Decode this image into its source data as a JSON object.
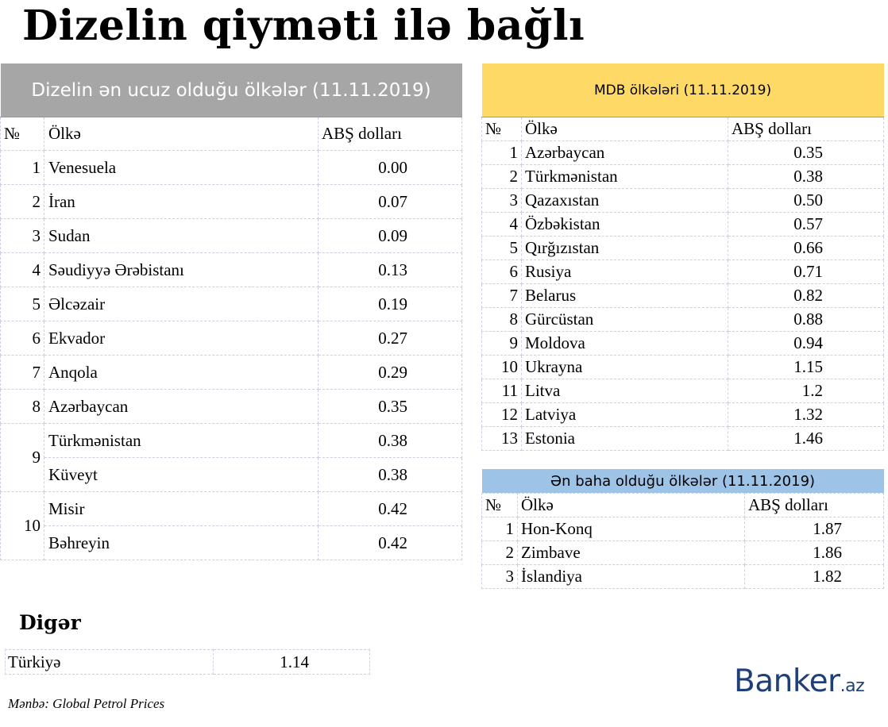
{
  "title": "Dizelin qiymәti ilә bağlı",
  "cheapest": {
    "heading": "Dizelin әn ucuz olduğu ölkәlәr (11.11.2019)",
    "columns": {
      "no": "№",
      "country": "Ölkә",
      "price": "ABŞ dolları"
    },
    "rows": [
      {
        "no": "1",
        "country": "Venesuela",
        "price": "0.00"
      },
      {
        "no": "2",
        "country": "İran",
        "price": "0.07"
      },
      {
        "no": "3",
        "country": "Sudan",
        "price": "0.09"
      },
      {
        "no": "4",
        "country": "Sәudiyyә Әrәbistanı",
        "price": "0.13"
      },
      {
        "no": "5",
        "country": "Әlcәzair",
        "price": "0.19"
      },
      {
        "no": "6",
        "country": "Ekvador",
        "price": "0.27"
      },
      {
        "no": "7",
        "country": "Anqola",
        "price": "0.29"
      },
      {
        "no": "8",
        "country": "Azәrbaycan",
        "price": "0.35"
      },
      {
        "no": "9",
        "country": "Türkmәnistan",
        "price": "0.38"
      },
      {
        "no": "",
        "country": "Küveyt",
        "price": "0.38"
      },
      {
        "no": "10",
        "country": "Misir",
        "price": "0.42"
      },
      {
        "no": "",
        "country": "Bәhreyin",
        "price": "0.42"
      }
    ]
  },
  "cis": {
    "heading": "MDB ölkәlәri (11.11.2019)",
    "columns": {
      "no": "№",
      "country": "Ölkә",
      "price": "ABŞ dolları"
    },
    "rows": [
      {
        "no": "1",
        "country": "Azәrbaycan",
        "price": "0.35"
      },
      {
        "no": "2",
        "country": "Türkmәnistan",
        "price": "0.38"
      },
      {
        "no": "3",
        "country": "Qazaxıstan",
        "price": "0.50"
      },
      {
        "no": "4",
        "country": "Özbәkistan",
        "price": "0.57"
      },
      {
        "no": "5",
        "country": "Qırğızıstan",
        "price": "0.66"
      },
      {
        "no": "6",
        "country": "Rusiya",
        "price": "0.71"
      },
      {
        "no": "7",
        "country": "Belarus",
        "price": "0.82"
      },
      {
        "no": "8",
        "country": "Gürcüstan",
        "price": "0.88"
      },
      {
        "no": "9",
        "country": "Moldova",
        "price": "0.94"
      },
      {
        "no": "10",
        "country": "Ukrayna",
        "price": "1.15"
      },
      {
        "no": "11",
        "country": "Litva",
        "price": "1.2"
      },
      {
        "no": "12",
        "country": "Latviya",
        "price": "1.32"
      },
      {
        "no": "13",
        "country": "Estonia",
        "price": "1.46"
      }
    ]
  },
  "expensive": {
    "heading": "Әn baha olduğu ölkәlәr (11.11.2019)",
    "columns": {
      "no": "№",
      "country": "Ölkә",
      "price": "ABŞ dolları"
    },
    "rows": [
      {
        "no": "1",
        "country": "Hon-Konq",
        "price": "1.87"
      },
      {
        "no": "2",
        "country": "Zimbave",
        "price": "1.86"
      },
      {
        "no": "3",
        "country": "İslandiya",
        "price": "1.82"
      }
    ]
  },
  "other": {
    "heading": "Digәr",
    "rows": [
      {
        "country": "Türkiyә",
        "price": "1.14"
      }
    ]
  },
  "source": "Mәnbә: Global Petrol Prices",
  "logo": {
    "main": "Banker",
    "suffix": ".az"
  },
  "colors": {
    "cheap_header": "#a6a6a6",
    "cis_header": "#ffd966",
    "expensive_header": "#9dc3e6",
    "logo": "#1f3f78"
  }
}
